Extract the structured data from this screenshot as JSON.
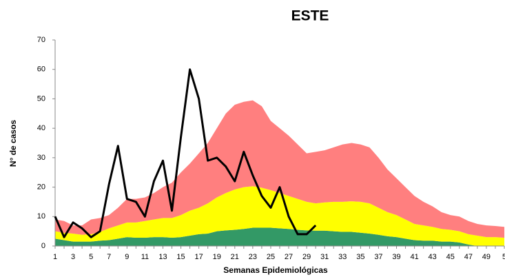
{
  "chart_data": {
    "type": "stacked-area-line",
    "title": "ESTE",
    "x_label": "Semanas Epidemiológicas",
    "y_label": "N° de casos",
    "categories": [
      "1",
      null,
      "3",
      null,
      "5",
      null,
      "7",
      null,
      "9",
      null,
      "11",
      null,
      "13",
      null,
      "15",
      null,
      "17",
      null,
      "19",
      null,
      "21",
      null,
      "23",
      null,
      "25",
      null,
      "27",
      null,
      "29",
      null,
      "31",
      null,
      "33",
      null,
      "35",
      null,
      "37",
      null,
      "39",
      null,
      "41",
      null,
      "43",
      null,
      "45",
      null,
      "47",
      null,
      "49",
      null,
      "5"
    ],
    "ylim": [
      0,
      70
    ],
    "yticks": [
      0,
      10,
      20,
      30,
      40,
      50,
      60,
      70
    ],
    "series": [
      {
        "kind": "area",
        "color": "#339966",
        "values": [
          2.5,
          2,
          1.5,
          1.5,
          1.5,
          1.8,
          2,
          2.5,
          3,
          2.8,
          2.8,
          3,
          3,
          2.8,
          3,
          3.5,
          4,
          4.2,
          5,
          5.3,
          5.5,
          5.8,
          6.2,
          6.2,
          6.2,
          6,
          5.8,
          5.5,
          5.3,
          5.2,
          5.2,
          5,
          4.8,
          4.8,
          4.5,
          4.2,
          3.8,
          3.3,
          3,
          2.5,
          2,
          1.8,
          1.8,
          1.5,
          1.5,
          1.2,
          0.5,
          0,
          0,
          0,
          0
        ]
      },
      {
        "kind": "area",
        "color": "#ffff00",
        "values": [
          2.5,
          2.5,
          2.7,
          2.3,
          2.5,
          3,
          4,
          4.5,
          5,
          5.2,
          5.7,
          6,
          6.5,
          6.7,
          7.5,
          8.5,
          9,
          10.3,
          11.5,
          12.7,
          13.7,
          14.2,
          14.1,
          13.6,
          12.8,
          12,
          11.2,
          10.5,
          9.7,
          9.3,
          9.6,
          10,
          10.2,
          10.4,
          10.5,
          10.3,
          9.2,
          8.2,
          7.5,
          6.5,
          5.5,
          5.2,
          4.7,
          4.3,
          4,
          3.8,
          3.5,
          3.5,
          3,
          3,
          2.8
        ]
      },
      {
        "kind": "area",
        "color": "#ff7f7f",
        "values": [
          4,
          4,
          2.8,
          3.2,
          5,
          4.7,
          4.5,
          6,
          8,
          8,
          8,
          9,
          10.5,
          12,
          14.5,
          16,
          18.5,
          20.5,
          23.5,
          27,
          28.8,
          29,
          29.2,
          27.7,
          23.5,
          22,
          20.5,
          18.5,
          16.5,
          17.5,
          17.7,
          18.5,
          19.5,
          19.8,
          19.5,
          19,
          17,
          14.5,
          12.5,
          11,
          9.5,
          8,
          7,
          5.7,
          5,
          5,
          4.5,
          4,
          4,
          3.8,
          3.7
        ]
      },
      {
        "kind": "line",
        "color": "#000000",
        "values": [
          10,
          3,
          8,
          6,
          3,
          5,
          21,
          34,
          16,
          15,
          10,
          22,
          29,
          12,
          37,
          60,
          50,
          29,
          30,
          27,
          22,
          32,
          24,
          17,
          13,
          20,
          10,
          4,
          4,
          7,
          null,
          null,
          null,
          null,
          null,
          null,
          null,
          null,
          null,
          null,
          null,
          null,
          null,
          null,
          null,
          null,
          null,
          null,
          null,
          null,
          null
        ]
      }
    ]
  }
}
